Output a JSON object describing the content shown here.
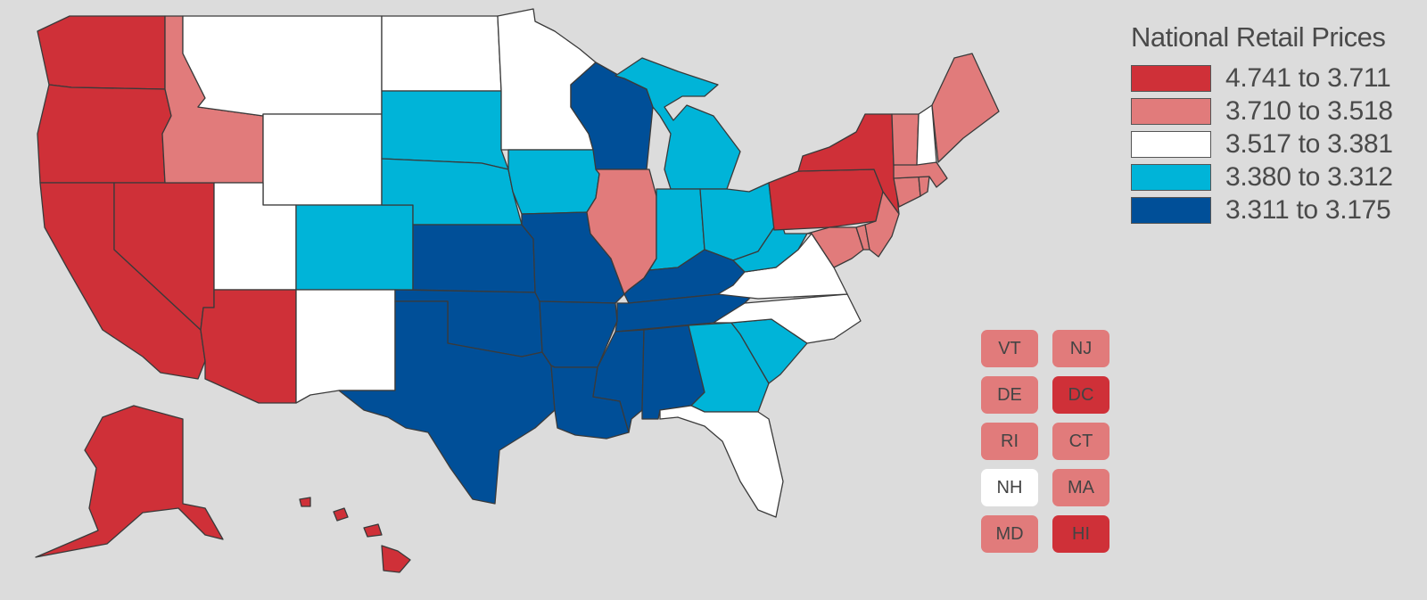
{
  "legend": {
    "title": "National Retail Prices",
    "ranges": [
      {
        "label": "4.741 to 3.711",
        "color": "#cf3038"
      },
      {
        "label": "3.710 to 3.518",
        "color": "#e17b7b"
      },
      {
        "label": "3.517 to 3.381",
        "color": "#ffffff"
      },
      {
        "label": "3.380 to 3.312",
        "color": "#00b4d8"
      },
      {
        "label": "3.311 to 3.175",
        "color": "#004f98"
      }
    ]
  },
  "small_states": [
    {
      "abbr": "VT",
      "tier": 1
    },
    {
      "abbr": "NJ",
      "tier": 1
    },
    {
      "abbr": "DE",
      "tier": 1
    },
    {
      "abbr": "DC",
      "tier": 0
    },
    {
      "abbr": "RI",
      "tier": 1
    },
    {
      "abbr": "CT",
      "tier": 1
    },
    {
      "abbr": "NH",
      "tier": 2
    },
    {
      "abbr": "MA",
      "tier": 1
    },
    {
      "abbr": "MD",
      "tier": 1
    },
    {
      "abbr": "HI",
      "tier": 0
    }
  ],
  "states": {
    "WA": 0,
    "OR": 0,
    "CA": 0,
    "NV": 0,
    "AZ": 0,
    "AK": 0,
    "HI": 0,
    "NY": 0,
    "PA": 0,
    "DC": 0,
    "ID": 1,
    "IL": 1,
    "ME": 1,
    "VT": 1,
    "MA": 1,
    "CT": 1,
    "RI": 1,
    "NJ": 1,
    "DE": 1,
    "MD": 1,
    "MT": 2,
    "WY": 2,
    "UT": 2,
    "NM": 2,
    "ND": 2,
    "MN": 2,
    "VA": 2,
    "NC": 2,
    "FL": 2,
    "NH": 2,
    "SD": 3,
    "NE": 3,
    "CO": 3,
    "IA": 3,
    "MI": 3,
    "IN": 3,
    "OH": 3,
    "WV": 3,
    "GA": 3,
    "SC": 3,
    "WI": 4,
    "KS": 4,
    "MO": 4,
    "OK": 4,
    "TX": 4,
    "AR": 4,
    "LA": 4,
    "MS": 4,
    "AL": 4,
    "TN": 4,
    "KY": 4
  }
}
